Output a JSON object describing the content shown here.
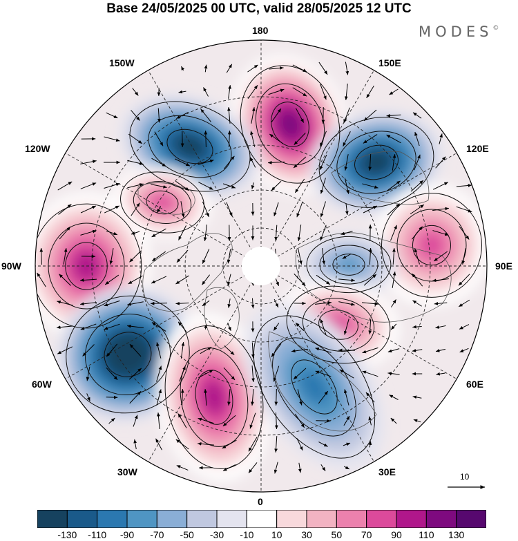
{
  "title": "Base 24/05/2025 00 UTC, valid 28/05/2025 12 UTC",
  "brand": "MODES",
  "brand_mark": "©",
  "map_labels": {
    "lon_180": "180",
    "lon_150W": "150W",
    "lon_150E": "150E",
    "lon_120W": "120W",
    "lon_120E": "120E",
    "lon_90W": "90W",
    "lon_90E": "90E",
    "lon_60W": "60W",
    "lon_60E": "60E",
    "lon_30W": "30W",
    "lon_30E": "30E",
    "lon_0": "0"
  },
  "reference_vector": "10",
  "colorbar": {
    "tick_labels": [
      "-130",
      "-110",
      "-90",
      "-70",
      "-50",
      "-30",
      "-10",
      "10",
      "30",
      "50",
      "70",
      "90",
      "110",
      "130"
    ],
    "colors": [
      "#16425f",
      "#1a5a8a",
      "#2b78b0",
      "#4f95c3",
      "#8aaed6",
      "#c0c8e0",
      "#e4e4ef",
      "#ffffff",
      "#f8d9dc",
      "#f2b3c2",
      "#ec81ad",
      "#dc4a9b",
      "#b0178b",
      "#7e0a7f",
      "#57086f"
    ]
  },
  "anomaly_centers": [
    {
      "sign": "positive",
      "level": 110
    },
    {
      "sign": "negative",
      "level": -110
    },
    {
      "sign": "negative",
      "level": -110
    },
    {
      "sign": "positive",
      "level": 70
    },
    {
      "sign": "positive",
      "level": 90
    },
    {
      "sign": "positive",
      "level": 70
    },
    {
      "sign": "negative",
      "level": -50
    },
    {
      "sign": "positive",
      "level": 70
    },
    {
      "sign": "negative",
      "level": -130
    },
    {
      "sign": "positive",
      "level": 90
    },
    {
      "sign": "negative",
      "level": -70
    }
  ]
}
